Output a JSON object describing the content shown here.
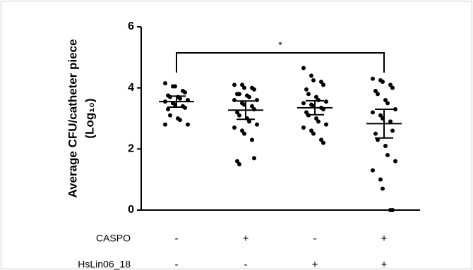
{
  "chart_data": {
    "type": "dotplot",
    "y_label": [
      "Average CFU/catheter piece",
      "(Log₁₀)"
    ],
    "ylim": [
      0,
      6
    ],
    "yticks": [
      0,
      2,
      4,
      6
    ],
    "annotation": "*",
    "color": "#000000",
    "groups": [
      {
        "values": [
          4.15,
          4.05,
          4.05,
          3.9,
          3.85,
          3.75,
          3.7,
          3.7,
          3.65,
          3.6,
          3.55,
          3.5,
          3.45,
          3.4,
          3.35,
          3.3,
          3.1,
          3.0,
          2.95,
          2.8,
          2.8
        ],
        "mean": 3.55,
        "error": 0.18
      },
      {
        "values": [
          4.1,
          4.1,
          4.0,
          4.0,
          3.95,
          3.8,
          3.8,
          3.75,
          3.7,
          3.6,
          3.6,
          3.5,
          3.45,
          3.4,
          3.3,
          3.2,
          3.1,
          3.0,
          2.9,
          2.8,
          2.7,
          2.6,
          2.5,
          2.3,
          1.7,
          1.6,
          1.5
        ],
        "mean": 3.27,
        "error": 0.3
      },
      {
        "values": [
          4.65,
          4.4,
          4.25,
          4.2,
          4.1,
          3.95,
          3.8,
          3.7,
          3.6,
          3.55,
          3.5,
          3.45,
          3.4,
          3.35,
          3.3,
          3.2,
          3.1,
          3.0,
          2.9,
          2.8,
          2.7,
          2.6,
          2.5,
          2.3,
          2.2
        ],
        "mean": 3.35,
        "error": 0.23
      },
      {
        "values": [
          4.3,
          4.25,
          4.2,
          4.1,
          4.0,
          3.9,
          3.8,
          3.6,
          3.5,
          3.3,
          3.2,
          3.1,
          3.0,
          2.9,
          2.6,
          2.5,
          2.3,
          2.1,
          1.8,
          1.6,
          1.3,
          1.0,
          0.7,
          0,
          0
        ],
        "mean": 2.83,
        "error": 0.47
      }
    ],
    "rows": [
      {
        "label": "CASPO",
        "values": [
          "-",
          "+",
          "-",
          "+"
        ]
      },
      {
        "label": "HsLin06_18",
        "values": [
          "-",
          "-",
          "+",
          "+"
        ]
      }
    ]
  }
}
